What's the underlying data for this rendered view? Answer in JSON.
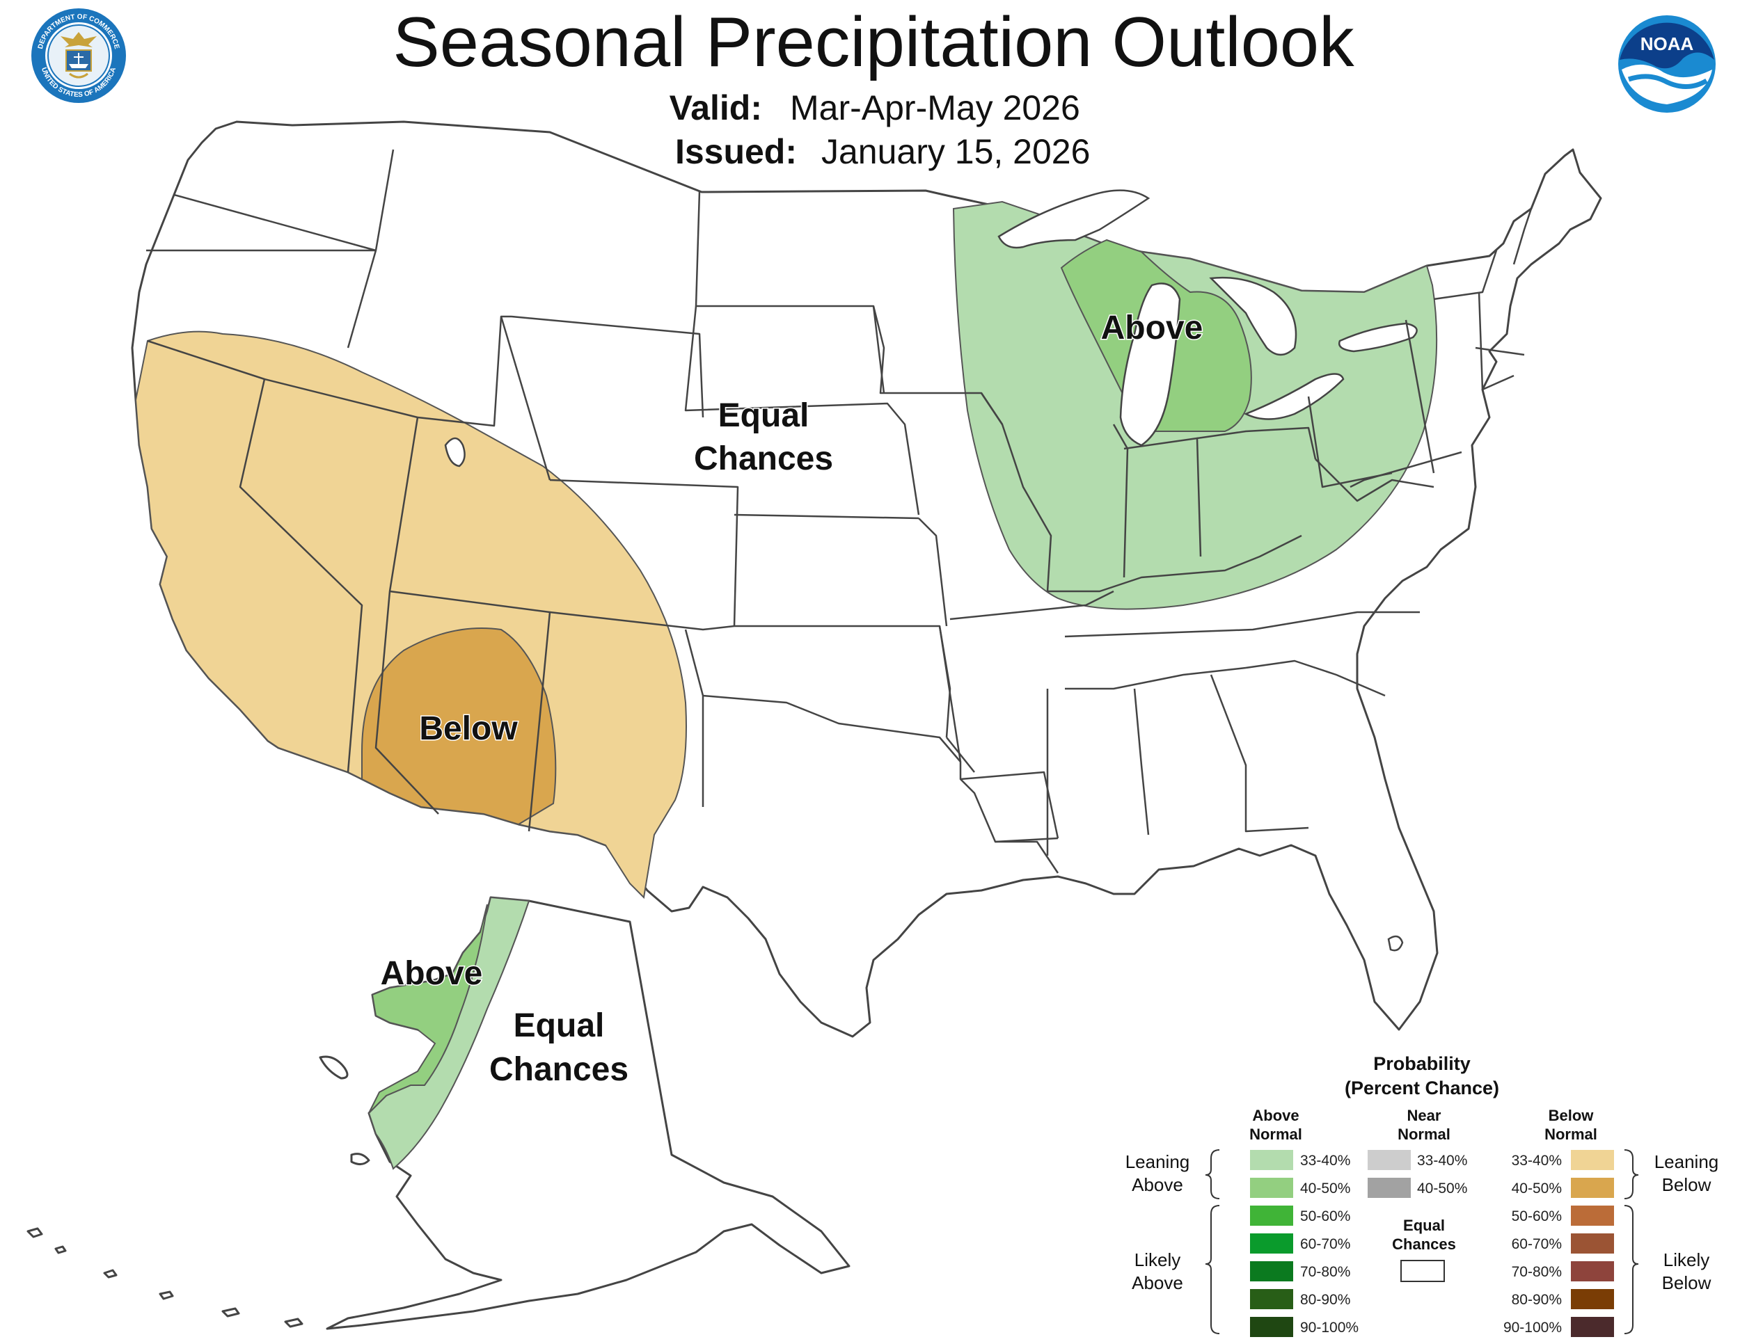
{
  "header": {
    "title": "Seasonal Precipitation Outlook",
    "valid_label": "Valid:",
    "valid_value": "Mar-Apr-May 2026",
    "issued_label": "Issued:",
    "issued_value": "January 15, 2026"
  },
  "logos": {
    "commerce_icon": "department-of-commerce-seal",
    "commerce_ring_top": "DEPARTMENT OF COMMERCE",
    "commerce_ring_bottom": "UNITED STATES OF AMERICA",
    "noaa_icon": "noaa-logo",
    "noaa_text": "NOAA"
  },
  "map": {
    "labels": {
      "conus_above": "Above",
      "conus_equal_1": "Equal",
      "conus_equal_2": "Chances",
      "conus_below": "Below",
      "ak_above": "Above",
      "ak_equal_1": "Equal",
      "ak_equal_2": "Chances"
    },
    "colors": {
      "above_33_40": "#b3dcae",
      "above_40_50": "#93cf80",
      "below_33_40": "#f0d495",
      "below_40_50": "#d9a64e",
      "land": "#ffffff",
      "border": "#444444"
    }
  },
  "legend": {
    "title_1": "Probability",
    "title_2": "(Percent Chance)",
    "col_above_1": "Above",
    "col_above_2": "Normal",
    "col_near_1": "Near",
    "col_near_2": "Normal",
    "col_below_1": "Below",
    "col_below_2": "Normal",
    "above": [
      {
        "label": "33-40%",
        "color": "#b3dcae"
      },
      {
        "label": "40-50%",
        "color": "#93cf80"
      },
      {
        "label": "50-60%",
        "color": "#40b437"
      },
      {
        "label": "60-70%",
        "color": "#0a9b2c"
      },
      {
        "label": "70-80%",
        "color": "#0b7a1f"
      },
      {
        "label": "80-90%",
        "color": "#285e17"
      },
      {
        "label": "90-100%",
        "color": "#1f4712"
      }
    ],
    "near": [
      {
        "label": "33-40%",
        "color": "#cdcdcd"
      },
      {
        "label": "40-50%",
        "color": "#a2a2a2"
      }
    ],
    "below": [
      {
        "label": "33-40%",
        "color": "#f0d495"
      },
      {
        "label": "40-50%",
        "color": "#d9a64e"
      },
      {
        "label": "50-60%",
        "color": "#bb6c38"
      },
      {
        "label": "60-70%",
        "color": "#9b5434"
      },
      {
        "label": "70-80%",
        "color": "#8e443c"
      },
      {
        "label": "80-90%",
        "color": "#7a3d05"
      },
      {
        "label": "90-100%",
        "color": "#4b2a2c"
      }
    ],
    "equal_1": "Equal",
    "equal_2": "Chances",
    "equal_color": "#ffffff",
    "leaning_above_1": "Leaning",
    "leaning_above_2": "Above",
    "likely_above_1": "Likely",
    "likely_above_2": "Above",
    "leaning_below_1": "Leaning",
    "leaning_below_2": "Below",
    "likely_below_1": "Likely",
    "likely_below_2": "Below"
  }
}
